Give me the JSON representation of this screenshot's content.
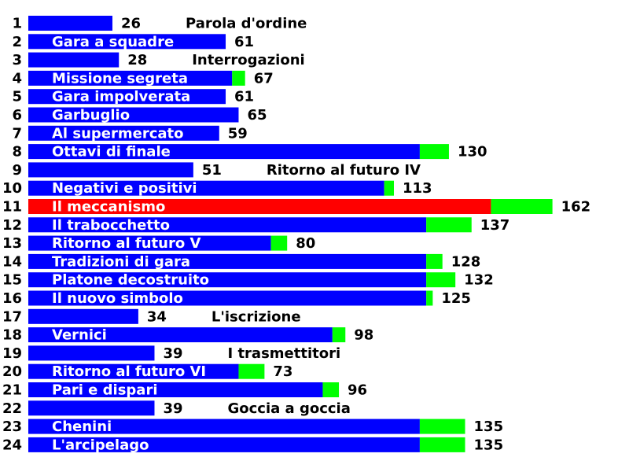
{
  "chart_data": {
    "type": "bar",
    "orientation": "horizontal",
    "stacked": true,
    "grid": false,
    "legend": "none",
    "colors": {
      "base": "#0000ff",
      "highlight": "#ff0000",
      "extra": "#00ff00"
    },
    "rows": [
      {
        "rank": "1",
        "label": "Parola d'ordine",
        "total": 26,
        "base": 26,
        "extra": 0,
        "label_inside": false
      },
      {
        "rank": "2",
        "label": "Gara a squadre",
        "total": 61,
        "base": 61,
        "extra": 0,
        "label_inside": true
      },
      {
        "rank": "3",
        "label": "Interrogazioni",
        "total": 28,
        "base": 28,
        "extra": 0,
        "label_inside": false
      },
      {
        "rank": "4",
        "label": "Missione segreta",
        "total": 67,
        "base": 63,
        "extra": 4,
        "label_inside": true
      },
      {
        "rank": "5",
        "label": "Gara impolverata",
        "total": 61,
        "base": 61,
        "extra": 0,
        "label_inside": true
      },
      {
        "rank": "6",
        "label": "Garbuglio",
        "total": 65,
        "base": 65,
        "extra": 0,
        "label_inside": true
      },
      {
        "rank": "7",
        "label": "Al supermercato",
        "total": 59,
        "base": 59,
        "extra": 0,
        "label_inside": true
      },
      {
        "rank": "8",
        "label": "Ottavi di finale",
        "total": 130,
        "base": 121,
        "extra": 9,
        "label_inside": true
      },
      {
        "rank": "9",
        "label": "Ritorno al futuro IV",
        "total": 51,
        "base": 51,
        "extra": 0,
        "label_inside": false
      },
      {
        "rank": "10",
        "label": "Negativi e positivi",
        "total": 113,
        "base": 110,
        "extra": 3,
        "label_inside": true
      },
      {
        "rank": "11",
        "label": "Il meccanismo",
        "total": 162,
        "base": 143,
        "extra": 19,
        "label_inside": true,
        "highlight": true
      },
      {
        "rank": "12",
        "label": "Il trabocchetto",
        "total": 137,
        "base": 123,
        "extra": 14,
        "label_inside": true
      },
      {
        "rank": "13",
        "label": "Ritorno al futuro V",
        "total": 80,
        "base": 75,
        "extra": 5,
        "label_inside": true
      },
      {
        "rank": "14",
        "label": "Tradizioni di gara",
        "total": 128,
        "base": 123,
        "extra": 5,
        "label_inside": true
      },
      {
        "rank": "15",
        "label": "Platone decostruito",
        "total": 132,
        "base": 123,
        "extra": 9,
        "label_inside": true
      },
      {
        "rank": "16",
        "label": "Il nuovo simbolo",
        "total": 125,
        "base": 123,
        "extra": 2,
        "label_inside": true
      },
      {
        "rank": "17",
        "label": "L'iscrizione",
        "total": 34,
        "base": 34,
        "extra": 0,
        "label_inside": false
      },
      {
        "rank": "18",
        "label": "Vernici",
        "total": 98,
        "base": 94,
        "extra": 4,
        "label_inside": true
      },
      {
        "rank": "19",
        "label": "I trasmettitori",
        "total": 39,
        "base": 39,
        "extra": 0,
        "label_inside": false
      },
      {
        "rank": "20",
        "label": "Ritorno al futuro VI",
        "total": 73,
        "base": 65,
        "extra": 8,
        "label_inside": true
      },
      {
        "rank": "21",
        "label": "Pari e dispari",
        "total": 96,
        "base": 91,
        "extra": 5,
        "label_inside": true
      },
      {
        "rank": "22",
        "label": "Goccia a goccia",
        "total": 39,
        "base": 39,
        "extra": 0,
        "label_inside": false
      },
      {
        "rank": "23",
        "label": "Chenini",
        "total": 135,
        "base": 121,
        "extra": 14,
        "label_inside": true
      },
      {
        "rank": "24",
        "label": "L'arcipelago",
        "total": 135,
        "base": 121,
        "extra": 14,
        "label_inside": true
      }
    ]
  }
}
